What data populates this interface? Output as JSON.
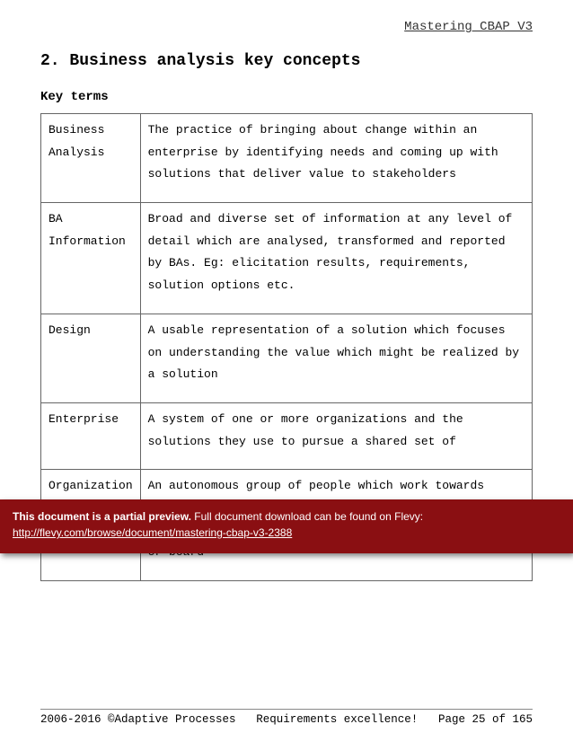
{
  "header": {
    "running_title": "Mastering CBAP V3"
  },
  "section": {
    "number": "2.",
    "title": "Business analysis key concepts",
    "subsection": "Key terms"
  },
  "terms": {
    "columns": [
      "term",
      "definition"
    ],
    "rows": [
      {
        "term": "Business Analysis",
        "definition": "The practice of bringing about change within an enterprise by identifying needs and coming up with solutions that deliver value to stakeholders"
      },
      {
        "term": "BA Information",
        "definition": "Broad and diverse set of information at any level of detail which are analysed, transformed and reported by BAs. Eg: elicitation results, requirements, solution options etc."
      },
      {
        "term": "Design",
        "definition": "A usable representation of a solution which focuses on understanding the value which might be realized by a solution"
      },
      {
        "term": "Enterprise",
        "definition": "A system of one or more organizations and the solutions they use to pursue a shared set of"
      },
      {
        "term": "Organization",
        "definition": "An autonomous group of people which work towards achieving common goals and objectives. It is typically under the management of a single individual or board"
      }
    ]
  },
  "footer": {
    "left": "2006-2016 ©Adaptive Processes",
    "center": "Requirements excellence!",
    "right": "Page 25 of 165"
  },
  "banner": {
    "bold_lead": "This document is a partial preview.",
    "rest": "Full document download can be found on Flevy:",
    "link_text": "http://flevy.com/browse/document/mastering-cbap-v3-2388",
    "link_href": "http://flevy.com/browse/document/mastering-cbap-v3-2388",
    "bg_color": "#8a0f12"
  }
}
